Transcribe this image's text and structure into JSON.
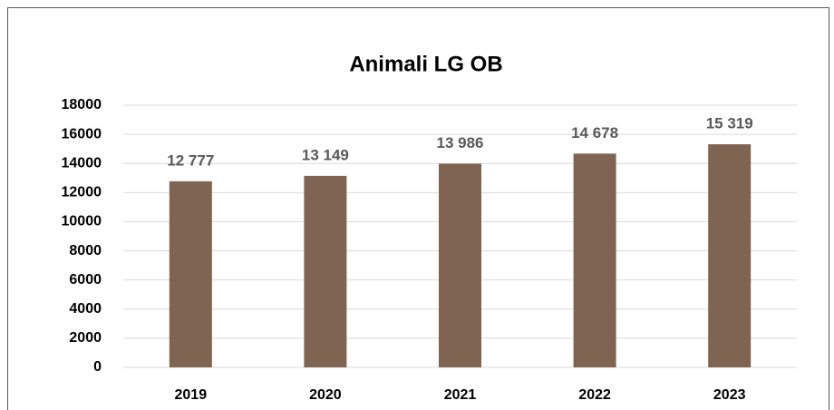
{
  "chart_data": {
    "type": "bar",
    "title": "Animali LG OB",
    "categories": [
      "2019",
      "2020",
      "2021",
      "2022",
      "2023"
    ],
    "values": [
      12777,
      13149,
      13986,
      14678,
      15319
    ],
    "value_labels": [
      "12 777",
      "13 149",
      "13 986",
      "14 678",
      "15 319"
    ],
    "color": "#7f6452",
    "ylim": [
      0,
      18000
    ],
    "yticks": [
      0,
      2000,
      4000,
      6000,
      8000,
      10000,
      12000,
      14000,
      16000,
      18000
    ],
    "grid": true
  }
}
